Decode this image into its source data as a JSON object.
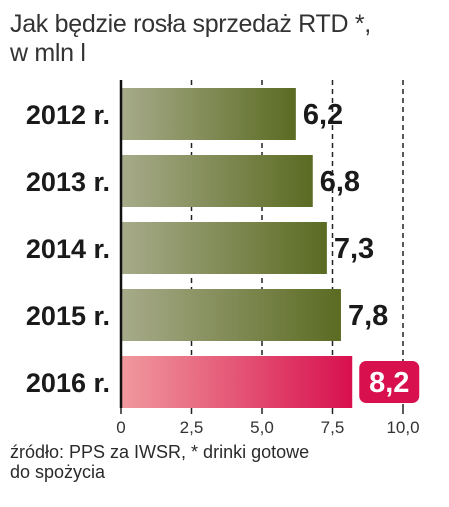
{
  "title": {
    "line1": "Jak będzie rosła sprzedaż RTD *,",
    "line2": "w mln l"
  },
  "source": {
    "line1": "źródło: PPS za IWSR, * drinki gotowe",
    "line2": "do spożycia"
  },
  "colors": {
    "bar_start": "#a7ab8a",
    "bar_end": "#5b6b22",
    "highlight_start": "#f09a9e",
    "highlight_end": "#d8104e",
    "highlight_label_bg": "#d8104e"
  },
  "chart_data": {
    "type": "bar",
    "orientation": "horizontal",
    "title": "Jak będzie rosła sprzedaż RTD *, w mln l",
    "categories": [
      "2012 r.",
      "2013 r.",
      "2014 r.",
      "2015 r.",
      "2016 r."
    ],
    "values": [
      6.2,
      6.8,
      7.3,
      7.8,
      8.2
    ],
    "value_labels": [
      "6,2",
      "6,8",
      "7,3",
      "7,8",
      "8,2"
    ],
    "highlight_index": 4,
    "xlim": [
      0,
      10
    ],
    "xticks": [
      0,
      2.5,
      5,
      7.5,
      10
    ],
    "xtick_labels": [
      "0",
      "2,5",
      "5,0",
      "7,5",
      "10,0"
    ],
    "grid": "vertical dashed at 2,5 5,0 7,5 10,0"
  }
}
